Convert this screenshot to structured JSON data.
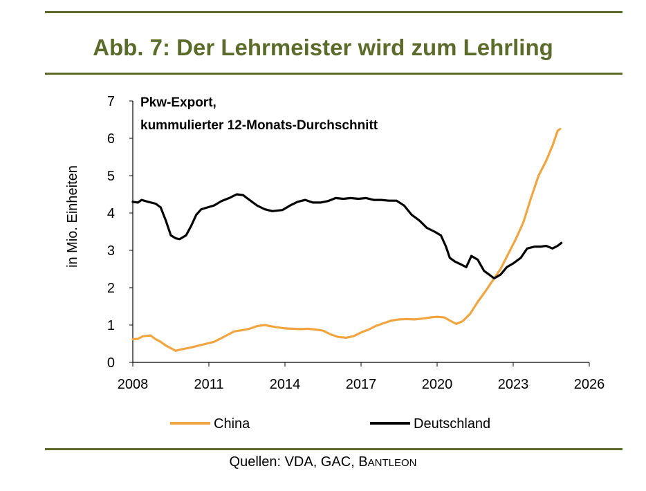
{
  "page": {
    "title": "Abb. 7: Der Lehrmeister wird zum Lehrling",
    "source_prefix": "Quellen: VDA, GAC, ",
    "source_brand_initial": "B",
    "source_brand_rest": "ANTLEON"
  },
  "colors": {
    "rule": "#5a6b2a",
    "title": "#5a6b2a",
    "china": "#f0a540",
    "deutschland": "#000000"
  },
  "chart_data": {
    "type": "line",
    "annotation_line1": "Pkw-Export,",
    "annotation_line2": "kummulierter 12-Monats-Durchschnitt",
    "ylabel": "in Mio. Einheiten",
    "xlabel": "",
    "xlim": [
      2008,
      2026
    ],
    "ylim": [
      0,
      7
    ],
    "xticks": [
      2008,
      2011,
      2014,
      2017,
      2020,
      2023,
      2026
    ],
    "yticks": [
      0,
      1,
      2,
      3,
      4,
      5,
      6,
      7
    ],
    "grid": false,
    "legend_position": "bottom",
    "series": [
      {
        "name": "China",
        "color": "#f0a540",
        "points": [
          [
            2008.0,
            0.62
          ],
          [
            2008.2,
            0.63
          ],
          [
            2008.4,
            0.7
          ],
          [
            2008.7,
            0.72
          ],
          [
            2008.9,
            0.62
          ],
          [
            2009.1,
            0.55
          ],
          [
            2009.3,
            0.45
          ],
          [
            2009.5,
            0.38
          ],
          [
            2009.7,
            0.31
          ],
          [
            2009.85,
            0.34
          ],
          [
            2010.0,
            0.36
          ],
          [
            2010.3,
            0.4
          ],
          [
            2010.6,
            0.45
          ],
          [
            2010.9,
            0.5
          ],
          [
            2011.2,
            0.55
          ],
          [
            2011.5,
            0.65
          ],
          [
            2011.8,
            0.76
          ],
          [
            2012.0,
            0.83
          ],
          [
            2012.3,
            0.86
          ],
          [
            2012.6,
            0.9
          ],
          [
            2012.9,
            0.97
          ],
          [
            2013.2,
            1.0
          ],
          [
            2013.5,
            0.96
          ],
          [
            2013.8,
            0.93
          ],
          [
            2014.0,
            0.91
          ],
          [
            2014.3,
            0.9
          ],
          [
            2014.6,
            0.89
          ],
          [
            2014.9,
            0.9
          ],
          [
            2015.2,
            0.88
          ],
          [
            2015.5,
            0.85
          ],
          [
            2015.8,
            0.75
          ],
          [
            2016.1,
            0.68
          ],
          [
            2016.4,
            0.66
          ],
          [
            2016.7,
            0.7
          ],
          [
            2017.0,
            0.8
          ],
          [
            2017.3,
            0.88
          ],
          [
            2017.6,
            0.98
          ],
          [
            2017.9,
            1.05
          ],
          [
            2018.2,
            1.12
          ],
          [
            2018.5,
            1.15
          ],
          [
            2018.8,
            1.16
          ],
          [
            2019.1,
            1.15
          ],
          [
            2019.4,
            1.17
          ],
          [
            2019.7,
            1.2
          ],
          [
            2020.0,
            1.22
          ],
          [
            2020.3,
            1.2
          ],
          [
            2020.5,
            1.12
          ],
          [
            2020.75,
            1.03
          ],
          [
            2021.0,
            1.1
          ],
          [
            2021.3,
            1.3
          ],
          [
            2021.6,
            1.62
          ],
          [
            2021.9,
            1.9
          ],
          [
            2022.2,
            2.2
          ],
          [
            2022.5,
            2.5
          ],
          [
            2022.8,
            2.9
          ],
          [
            2023.1,
            3.3
          ],
          [
            2023.4,
            3.75
          ],
          [
            2023.7,
            4.4
          ],
          [
            2024.0,
            5.0
          ],
          [
            2024.3,
            5.4
          ],
          [
            2024.55,
            5.8
          ],
          [
            2024.75,
            6.2
          ],
          [
            2024.85,
            6.25
          ]
        ]
      },
      {
        "name": "Deutschland",
        "color": "#000000",
        "points": [
          [
            2008.0,
            4.3
          ],
          [
            2008.2,
            4.28
          ],
          [
            2008.35,
            4.35
          ],
          [
            2008.6,
            4.3
          ],
          [
            2008.9,
            4.25
          ],
          [
            2009.1,
            4.15
          ],
          [
            2009.3,
            3.8
          ],
          [
            2009.5,
            3.4
          ],
          [
            2009.7,
            3.32
          ],
          [
            2009.85,
            3.3
          ],
          [
            2010.1,
            3.4
          ],
          [
            2010.3,
            3.65
          ],
          [
            2010.5,
            3.95
          ],
          [
            2010.7,
            4.1
          ],
          [
            2010.95,
            4.15
          ],
          [
            2011.2,
            4.2
          ],
          [
            2011.5,
            4.32
          ],
          [
            2011.8,
            4.4
          ],
          [
            2012.1,
            4.5
          ],
          [
            2012.35,
            4.48
          ],
          [
            2012.6,
            4.35
          ],
          [
            2012.9,
            4.2
          ],
          [
            2013.2,
            4.1
          ],
          [
            2013.5,
            4.05
          ],
          [
            2013.9,
            4.08
          ],
          [
            2014.2,
            4.2
          ],
          [
            2014.5,
            4.3
          ],
          [
            2014.8,
            4.35
          ],
          [
            2015.1,
            4.28
          ],
          [
            2015.4,
            4.28
          ],
          [
            2015.7,
            4.32
          ],
          [
            2016.0,
            4.4
          ],
          [
            2016.3,
            4.38
          ],
          [
            2016.6,
            4.4
          ],
          [
            2016.9,
            4.38
          ],
          [
            2017.2,
            4.4
          ],
          [
            2017.5,
            4.35
          ],
          [
            2017.8,
            4.35
          ],
          [
            2018.1,
            4.33
          ],
          [
            2018.4,
            4.33
          ],
          [
            2018.7,
            4.2
          ],
          [
            2019.0,
            3.95
          ],
          [
            2019.3,
            3.8
          ],
          [
            2019.6,
            3.6
          ],
          [
            2019.9,
            3.5
          ],
          [
            2020.15,
            3.4
          ],
          [
            2020.35,
            3.1
          ],
          [
            2020.5,
            2.8
          ],
          [
            2020.7,
            2.7
          ],
          [
            2020.95,
            2.62
          ],
          [
            2021.15,
            2.55
          ],
          [
            2021.35,
            2.85
          ],
          [
            2021.6,
            2.75
          ],
          [
            2021.85,
            2.45
          ],
          [
            2022.05,
            2.35
          ],
          [
            2022.25,
            2.25
          ],
          [
            2022.5,
            2.35
          ],
          [
            2022.75,
            2.55
          ],
          [
            2023.0,
            2.65
          ],
          [
            2023.3,
            2.8
          ],
          [
            2023.55,
            3.05
          ],
          [
            2023.85,
            3.1
          ],
          [
            2024.1,
            3.1
          ],
          [
            2024.3,
            3.12
          ],
          [
            2024.55,
            3.05
          ],
          [
            2024.75,
            3.12
          ],
          [
            2024.9,
            3.2
          ]
        ]
      }
    ]
  }
}
